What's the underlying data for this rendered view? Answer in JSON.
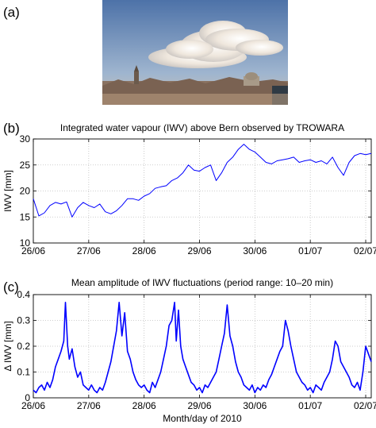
{
  "panels": {
    "a": "(a)",
    "b": "(b)",
    "c": "(c)"
  },
  "photo": {
    "description_icon": "sky-cumulonimbus-city-photo-icon",
    "sky_color": "#7f9fc4",
    "cloud_color": "#f1ece6",
    "city_color": "#8a7261"
  },
  "colors": {
    "series": "#0000ff",
    "grid": "#bfbfbf",
    "axis": "#000000"
  },
  "chart_data": [
    {
      "type": "line",
      "title": "Integrated water vapour (IWV) above Bern observed by TROWARA",
      "xlabel": "",
      "ylabel": "IWV [mm]",
      "xlim": [
        0,
        6.1
      ],
      "ylim": [
        10,
        30
      ],
      "x_tick_values": [
        0,
        1,
        2,
        3,
        4,
        5,
        6
      ],
      "x_tick_labels": [
        "26/06",
        "27/06",
        "28/06",
        "29/06",
        "30/06",
        "01/07",
        "02/07"
      ],
      "y_ticks": [
        10,
        15,
        20,
        25,
        30
      ],
      "grid": true,
      "series": [
        {
          "x": [
            0,
            0.1,
            0.2,
            0.3,
            0.4,
            0.5,
            0.6,
            0.7,
            0.8,
            0.9,
            1.0,
            1.1,
            1.2,
            1.3,
            1.4,
            1.5,
            1.6,
            1.7,
            1.8,
            1.9,
            2.0,
            2.1,
            2.2,
            2.3,
            2.4,
            2.5,
            2.6,
            2.7,
            2.8,
            2.9,
            3.0,
            3.1,
            3.2,
            3.3,
            3.4,
            3.5,
            3.6,
            3.7,
            3.8,
            3.9,
            4.0,
            4.1,
            4.2,
            4.3,
            4.4,
            4.5,
            4.6,
            4.7,
            4.8,
            4.9,
            5.0,
            5.1,
            5.2,
            5.3,
            5.4,
            5.5,
            5.6,
            5.7,
            5.8,
            5.9,
            6.0,
            6.1
          ],
          "values": [
            18.5,
            15.2,
            15.8,
            17.2,
            17.8,
            17.5,
            17.9,
            15.0,
            16.8,
            17.8,
            17.2,
            16.8,
            17.5,
            16.0,
            15.6,
            16.2,
            17.2,
            18.5,
            18.5,
            18.2,
            19.0,
            19.5,
            20.5,
            20.8,
            21.0,
            22.0,
            22.5,
            23.5,
            25.0,
            24.0,
            23.8,
            24.5,
            25.0,
            22.0,
            23.5,
            25.5,
            26.5,
            28.0,
            29.0,
            28.0,
            27.5,
            26.5,
            25.5,
            25.2,
            25.8,
            26.0,
            26.2,
            26.5,
            25.5,
            25.8,
            26.0,
            25.5,
            25.8,
            25.2,
            26.5,
            24.5,
            23.0,
            25.5,
            26.8,
            27.2,
            27.0,
            27.2
          ]
        }
      ]
    },
    {
      "type": "line",
      "title": "Mean amplitude of IWV fluctuations (period range: 10–20 min)",
      "xlabel": "Month/day of 2010",
      "ylabel": "Δ IWV [mm]",
      "xlim": [
        0,
        6.1
      ],
      "ylim": [
        0,
        0.4
      ],
      "x_tick_values": [
        0,
        1,
        2,
        3,
        4,
        5,
        6
      ],
      "x_tick_labels": [
        "26/06",
        "27/06",
        "28/06",
        "29/06",
        "30/06",
        "01/07",
        "02/07"
      ],
      "y_ticks": [
        0,
        0.1,
        0.2,
        0.3,
        0.4
      ],
      "y_tick_labels": [
        "0",
        "0.1",
        "0.2",
        "0.3",
        "0.4"
      ],
      "grid": true,
      "series": [
        {
          "x": [
            0,
            0.05,
            0.1,
            0.15,
            0.2,
            0.25,
            0.3,
            0.35,
            0.4,
            0.45,
            0.5,
            0.55,
            0.58,
            0.62,
            0.65,
            0.7,
            0.75,
            0.8,
            0.85,
            0.9,
            0.95,
            1.0,
            1.05,
            1.1,
            1.15,
            1.2,
            1.25,
            1.3,
            1.35,
            1.4,
            1.45,
            1.5,
            1.55,
            1.6,
            1.65,
            1.7,
            1.75,
            1.8,
            1.85,
            1.9,
            1.95,
            2.0,
            2.05,
            2.1,
            2.15,
            2.2,
            2.25,
            2.3,
            2.35,
            2.4,
            2.45,
            2.5,
            2.55,
            2.58,
            2.62,
            2.66,
            2.7,
            2.75,
            2.8,
            2.85,
            2.9,
            2.95,
            3.0,
            3.05,
            3.1,
            3.15,
            3.2,
            3.25,
            3.3,
            3.35,
            3.4,
            3.45,
            3.5,
            3.55,
            3.6,
            3.65,
            3.7,
            3.75,
            3.8,
            3.85,
            3.9,
            3.95,
            4.0,
            4.05,
            4.1,
            4.15,
            4.2,
            4.25,
            4.3,
            4.35,
            4.4,
            4.45,
            4.5,
            4.55,
            4.6,
            4.65,
            4.7,
            4.75,
            4.8,
            4.85,
            4.9,
            4.95,
            5.0,
            5.05,
            5.1,
            5.15,
            5.2,
            5.25,
            5.3,
            5.35,
            5.4,
            5.45,
            5.5,
            5.55,
            5.6,
            5.65,
            5.7,
            5.75,
            5.8,
            5.85,
            5.9,
            5.95,
            6.0,
            6.05,
            6.1
          ],
          "values": [
            0.03,
            0.02,
            0.04,
            0.05,
            0.03,
            0.06,
            0.04,
            0.07,
            0.12,
            0.15,
            0.18,
            0.22,
            0.37,
            0.2,
            0.15,
            0.19,
            0.12,
            0.08,
            0.1,
            0.05,
            0.04,
            0.03,
            0.05,
            0.03,
            0.02,
            0.04,
            0.03,
            0.06,
            0.1,
            0.14,
            0.2,
            0.26,
            0.37,
            0.24,
            0.33,
            0.18,
            0.15,
            0.1,
            0.07,
            0.05,
            0.04,
            0.05,
            0.03,
            0.02,
            0.06,
            0.04,
            0.07,
            0.1,
            0.15,
            0.2,
            0.28,
            0.3,
            0.37,
            0.22,
            0.34,
            0.2,
            0.15,
            0.12,
            0.09,
            0.06,
            0.05,
            0.03,
            0.04,
            0.02,
            0.05,
            0.04,
            0.06,
            0.08,
            0.1,
            0.15,
            0.2,
            0.25,
            0.36,
            0.24,
            0.2,
            0.14,
            0.1,
            0.08,
            0.05,
            0.04,
            0.03,
            0.05,
            0.02,
            0.04,
            0.03,
            0.05,
            0.04,
            0.07,
            0.09,
            0.12,
            0.15,
            0.18,
            0.2,
            0.3,
            0.26,
            0.2,
            0.15,
            0.1,
            0.08,
            0.06,
            0.05,
            0.03,
            0.04,
            0.02,
            0.05,
            0.04,
            0.03,
            0.06,
            0.08,
            0.1,
            0.15,
            0.22,
            0.2,
            0.14,
            0.12,
            0.1,
            0.08,
            0.05,
            0.04,
            0.06,
            0.03,
            0.1,
            0.2,
            0.17,
            0.14
          ]
        }
      ]
    }
  ]
}
